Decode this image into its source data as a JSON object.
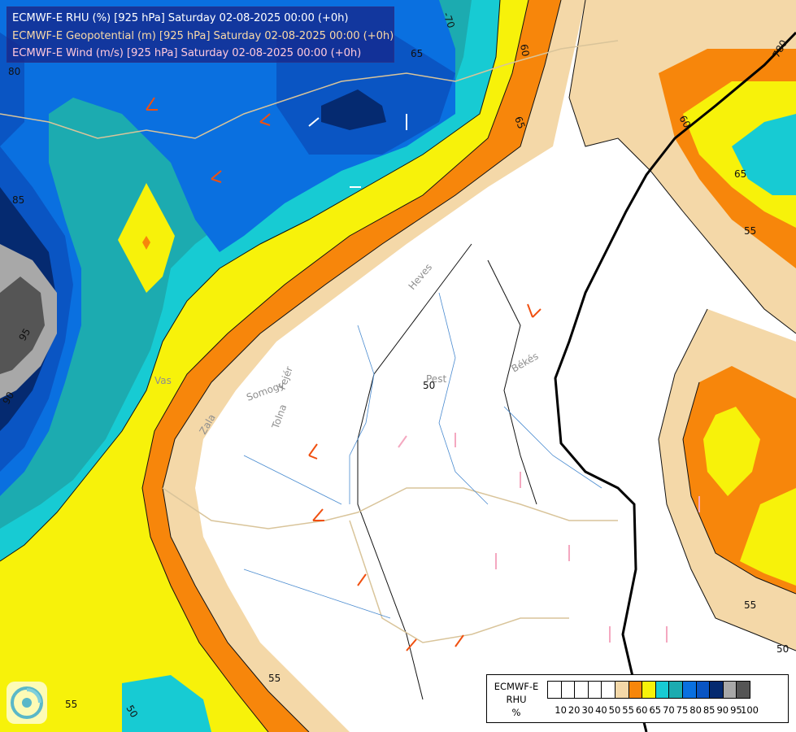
{
  "title_lines": [
    {
      "text": "ECMWF-E RHU (%) [925 hPa] Saturday 02-08-2025 00:00 (+0h)",
      "color": "#ffffff"
    },
    {
      "text": "ECMWF-E Geopotential (m) [925 hPa] Saturday 02-08-2025 00:00 (+0h)",
      "color": "#f7d8a8"
    },
    {
      "text": "ECMWF-E Wind (m/s) [925 hPa] Saturday 02-08-2025 00:00 (+0h)",
      "color": "#ffc8dc"
    }
  ],
  "legend": {
    "title": "ECMWF-E\nRHU\n%",
    "colors": [
      "#ffffff",
      "#ffffff",
      "#ffffff",
      "#ffffff",
      "#ffffff",
      "#f4d8a8",
      "#f7860b",
      "#f7f20a",
      "#17cbd3",
      "#1cabb0",
      "#0a70e0",
      "#0a55c3",
      "#052a70",
      "#a8a8a8",
      "#555555"
    ],
    "ticks": [
      "10",
      "20",
      "30",
      "40",
      "50",
      "55",
      "60",
      "65",
      "70",
      "75",
      "80",
      "85",
      "90",
      "95",
      "100"
    ]
  },
  "contour_labels": [
    "-70",
    "65",
    "60",
    "65",
    "60",
    "55",
    "55",
    "50",
    "95",
    "90",
    "85",
    "55",
    "65",
    "50",
    "55",
    "50",
    "80",
    "780"
  ],
  "place_labels": [
    "Heves",
    "Pest",
    "Békés",
    "Somogy",
    "Tolna",
    "Zala",
    "Vas",
    "Fejér"
  ],
  "colors": {
    "white": "#ffffff",
    "tan": "#f4d8a8",
    "orange": "#f7860b",
    "yellow": "#f7f20a",
    "cyan": "#17cbd3",
    "teal": "#1cabb0",
    "blue": "#0a70e0",
    "mid_blue": "#0a55c3",
    "navy": "#052a70",
    "grey": "#a8a8a8",
    "dark_grey": "#555555",
    "barb_pink": "#f4a8c0",
    "barb_orange": "#f05010",
    "barb_white": "#ffffff"
  }
}
